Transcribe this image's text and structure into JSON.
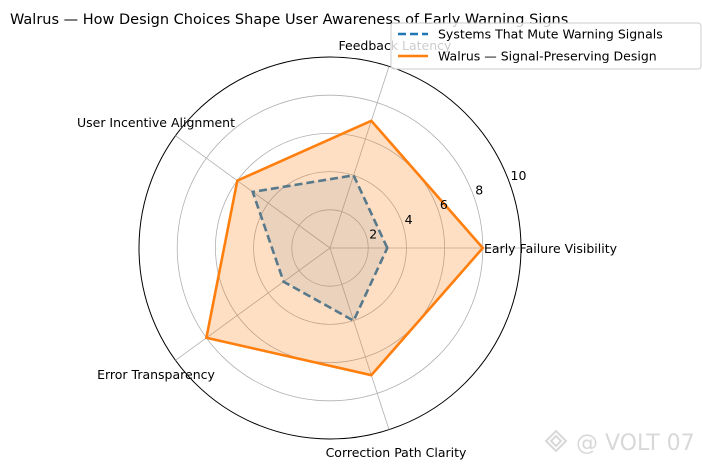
{
  "chart_data": {
    "type": "radar",
    "title": "Walrus — How Design Choices Shape User Awareness of Early Warning Signs",
    "categories": [
      "Early Failure Visibility",
      "Feedback Latency",
      "User Incentive Alignment",
      "Error Transparency",
      "Correction Path Clarity"
    ],
    "series": [
      {
        "name": "Systems That Mute Warning Signals",
        "values": [
          3,
          4,
          5,
          3,
          4
        ],
        "color": "#1f77b4",
        "line_style": "dashed",
        "fill": false
      },
      {
        "name": "Walrus — Signal-Preserving Design",
        "values": [
          8,
          7,
          6,
          8,
          7
        ],
        "color": "#ff7f0e",
        "line_style": "solid",
        "fill": true
      }
    ],
    "radial_ticks": [
      "2",
      "4",
      "6",
      "8",
      "10"
    ],
    "rlim": [
      0,
      10
    ],
    "grid": true,
    "legend_position": "top-right"
  },
  "watermark": {
    "text": "@ VOLT 07"
  }
}
